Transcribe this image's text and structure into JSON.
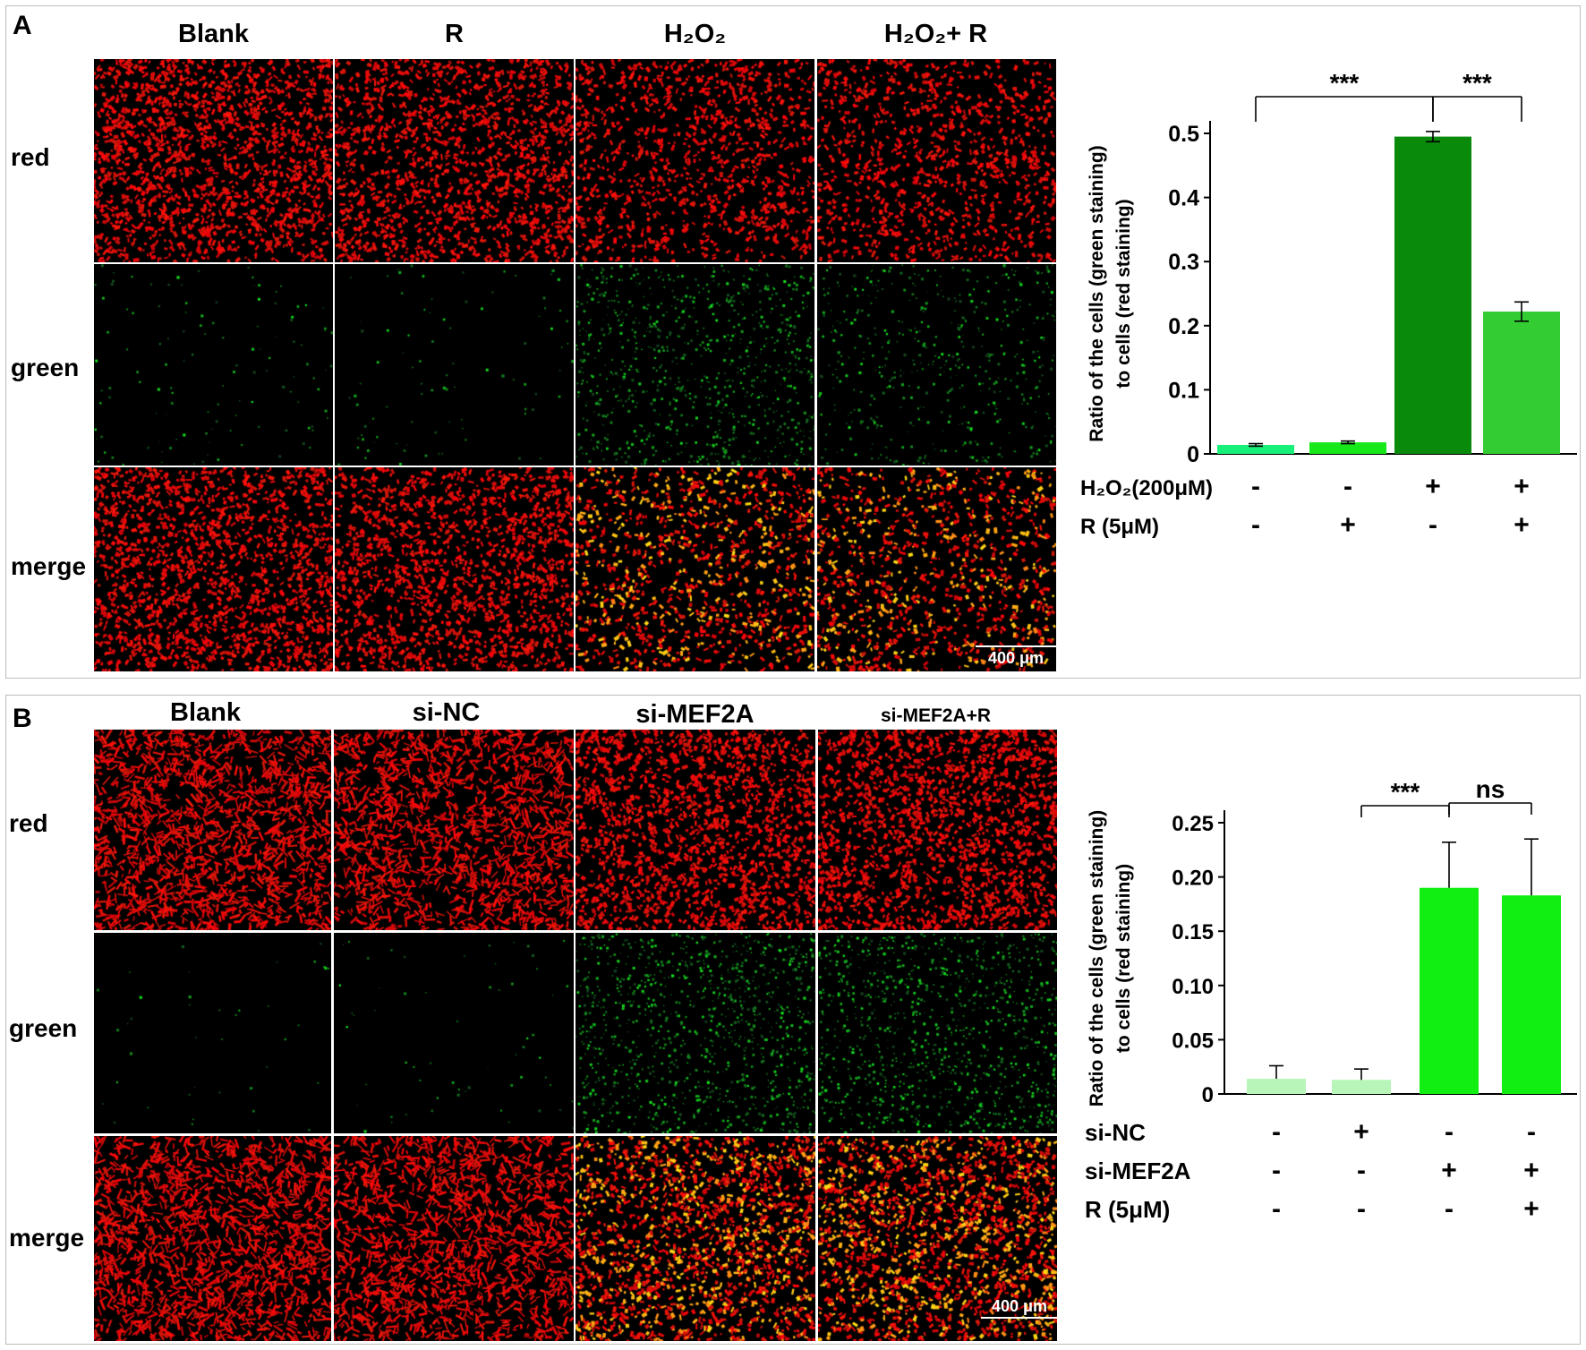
{
  "panels": [
    {
      "letter": "A",
      "columns": [
        "Blank",
        "R",
        "H₂O₂",
        "H₂O₂+ R"
      ],
      "rows": [
        "red",
        "green",
        "merge"
      ],
      "scale_bar": "400 μm"
    },
    {
      "letter": "B",
      "columns": [
        "Blank",
        "si-NC",
        "si-MEF2A",
        "si-MEF2A+R"
      ],
      "rows": [
        "red",
        "green",
        "merge"
      ],
      "scale_bar": "400 μm"
    }
  ],
  "chart_data": [
    {
      "type": "bar",
      "ylabel_line1": "Ratio of the cells (green staining)",
      "ylabel_line2": "to cells (red staining)",
      "ylim": [
        0,
        0.5
      ],
      "yticks": [
        "0",
        "0.1",
        "0.2",
        "0.3",
        "0.4",
        "0.5"
      ],
      "values": [
        0.014,
        0.018,
        0.495,
        0.222
      ],
      "errors": [
        0.002,
        0.002,
        0.008,
        0.015
      ],
      "bar_colors": [
        "#19f07a",
        "#16e81a",
        "#0a8a0a",
        "#33cc33"
      ],
      "conditions": [
        {
          "label": "H₂O₂(200μM)",
          "signs": [
            "-",
            "-",
            "+",
            "+"
          ]
        },
        {
          "label": "R (5μM)",
          "signs": [
            "-",
            "+",
            "-",
            "+"
          ]
        }
      ],
      "significance": [
        {
          "from": 0,
          "to": 2,
          "label": "***"
        },
        {
          "from": 2,
          "to": 3,
          "label": "***"
        }
      ]
    },
    {
      "type": "bar",
      "ylabel_line1": "Ratio of the cells (green staining)",
      "ylabel_line2": "to cells (red staining)",
      "ylim": [
        0,
        0.25
      ],
      "yticks": [
        "0",
        "0.05",
        "0.10",
        "0.15",
        "0.20",
        "0.25"
      ],
      "values": [
        0.014,
        0.013,
        0.19,
        0.183
      ],
      "errors": [
        0.012,
        0.01,
        0.042,
        0.052
      ],
      "bar_colors": [
        "#b8f5b8",
        "#b8f5b8",
        "#11ee11",
        "#11ee11"
      ],
      "conditions": [
        {
          "label": "si-NC",
          "signs": [
            "-",
            "+",
            "-",
            "-"
          ]
        },
        {
          "label": "si-MEF2A",
          "signs": [
            "-",
            "-",
            "+",
            "+"
          ]
        },
        {
          "label": "R (5μM)",
          "signs": [
            "-",
            "-",
            "-",
            "+"
          ]
        }
      ],
      "significance": [
        {
          "from": 1,
          "to": 2,
          "label": "***"
        },
        {
          "from": 2,
          "to": 3,
          "label": "ns"
        }
      ]
    }
  ]
}
